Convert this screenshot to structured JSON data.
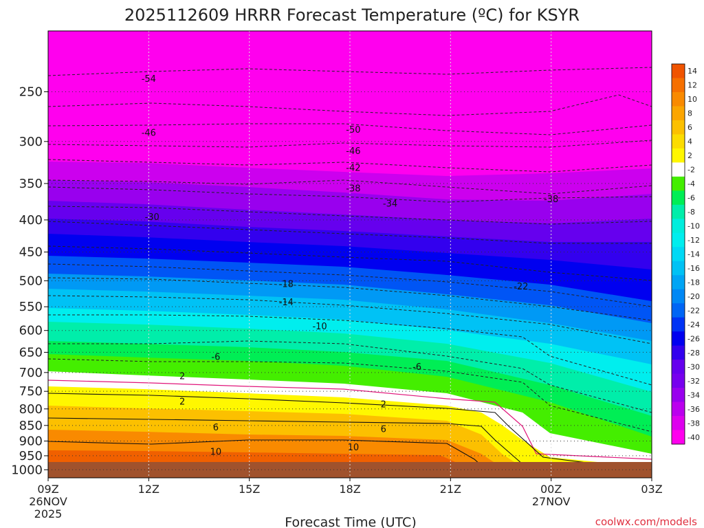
{
  "chart_data": {
    "type": "heatmap",
    "title": "2025112609 HRRR Forecast Temperature (ºC) for KSYR",
    "xlabel": "Forecast Time (UTC)",
    "ylabel": "",
    "credit": "coolwx.com/models",
    "x_ticks": [
      {
        "hour": 0,
        "label": "09Z",
        "sub1": "26NOV",
        "sub2": "2025"
      },
      {
        "hour": 3,
        "label": "12Z",
        "sub1": "",
        "sub2": ""
      },
      {
        "hour": 6,
        "label": "15Z",
        "sub1": "",
        "sub2": ""
      },
      {
        "hour": 9,
        "label": "18Z",
        "sub1": "",
        "sub2": ""
      },
      {
        "hour": 12,
        "label": "21Z",
        "sub1": "",
        "sub2": ""
      },
      {
        "hour": 15,
        "label": "00Z",
        "sub1": "27NOV",
        "sub2": ""
      },
      {
        "hour": 18,
        "label": "03Z",
        "sub1": "",
        "sub2": ""
      }
    ],
    "xlim_hours": [
      0,
      18
    ],
    "y_scale": "log-pressure",
    "y_ticks": [
      250,
      300,
      350,
      400,
      450,
      500,
      550,
      600,
      650,
      700,
      750,
      800,
      850,
      900,
      950,
      1000
    ],
    "ylim_hPa": [
      200,
      1030
    ],
    "surface_pressure_hPa": 985,
    "colorbar": {
      "labels": [
        "14",
        "12",
        "10",
        "8",
        "6",
        "4",
        "2",
        "-2",
        "-4",
        "-6",
        "-8",
        "-10",
        "-12",
        "-14",
        "-16",
        "-18",
        "-20",
        "-22",
        "-24",
        "-26",
        "-28",
        "-30",
        "-32",
        "-34",
        "-36",
        "-38",
        "-40"
      ],
      "colors": [
        "#f05400",
        "#f67000",
        "#f98a00",
        "#fba500",
        "#fcc000",
        "#fcdc00",
        "#fff700",
        "#ffffff",
        "#44ee00",
        "#00ee55",
        "#00eeaa",
        "#00eedd",
        "#00eeee",
        "#00d9f5",
        "#00c2f5",
        "#00a5f5",
        "#0088f5",
        "#0066f5",
        "#0033f5",
        "#0000f0",
        "#3300ee",
        "#6600ee",
        "#7700ee",
        "#9900ee",
        "#bb00ee",
        "#dd00ee",
        "#ff00ee"
      ]
    },
    "contour_labels": [
      {
        "text": "-54",
        "hour": 3.0,
        "p": 238
      },
      {
        "text": "-46",
        "hour": 3.0,
        "p": 290
      },
      {
        "text": "-50",
        "hour": 9.1,
        "p": 287
      },
      {
        "text": "-46",
        "hour": 9.1,
        "p": 310
      },
      {
        "text": "-42",
        "hour": 9.1,
        "p": 330
      },
      {
        "text": "-38",
        "hour": 9.1,
        "p": 356
      },
      {
        "text": "-38",
        "hour": 15.0,
        "p": 370
      },
      {
        "text": "-34",
        "hour": 10.2,
        "p": 376
      },
      {
        "text": "-30",
        "hour": 3.1,
        "p": 395
      },
      {
        "text": "-18",
        "hour": 7.1,
        "p": 505
      },
      {
        "text": "-22",
        "hour": 14.1,
        "p": 510
      },
      {
        "text": "-14",
        "hour": 7.1,
        "p": 540
      },
      {
        "text": "-10",
        "hour": 8.1,
        "p": 590
      },
      {
        "text": "-6",
        "hour": 5.0,
        "p": 660
      },
      {
        "text": "-6",
        "hour": 11.0,
        "p": 685
      },
      {
        "text": "2",
        "hour": 4.0,
        "p": 708
      },
      {
        "text": "2",
        "hour": 4.0,
        "p": 778
      },
      {
        "text": "2",
        "hour": 10.0,
        "p": 785
      },
      {
        "text": "6",
        "hour": 5.0,
        "p": 855
      },
      {
        "text": "6",
        "hour": 10.0,
        "p": 860
      },
      {
        "text": "10",
        "hour": 5.0,
        "p": 935
      },
      {
        "text": "10",
        "hour": 9.1,
        "p": 920
      }
    ]
  }
}
